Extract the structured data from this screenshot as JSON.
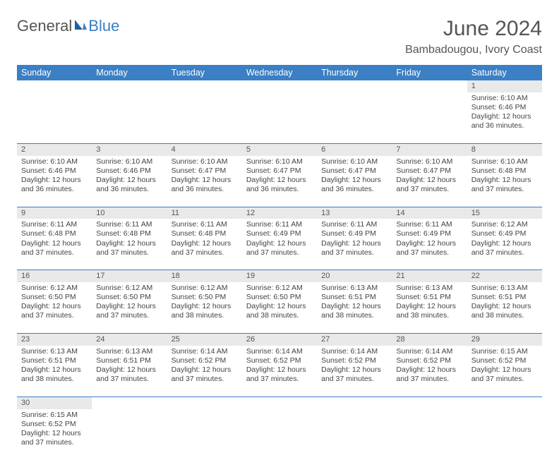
{
  "logo": {
    "text1": "General",
    "text2": "Blue"
  },
  "title": "June 2024",
  "subtitle": "Bambadougou, Ivory Coast",
  "colors": {
    "header_bg": "#3b7fc4",
    "header_fg": "#ffffff",
    "daynum_bg": "#e9e9e9",
    "cell_border": "#3b7fc4",
    "text": "#444444"
  },
  "weekdays": [
    "Sunday",
    "Monday",
    "Tuesday",
    "Wednesday",
    "Thursday",
    "Friday",
    "Saturday"
  ],
  "weeks": [
    [
      null,
      null,
      null,
      null,
      null,
      null,
      {
        "n": "1",
        "sunrise": "6:10 AM",
        "sunset": "6:46 PM",
        "daylight": "12 hours and 36 minutes."
      }
    ],
    [
      {
        "n": "2",
        "sunrise": "6:10 AM",
        "sunset": "6:46 PM",
        "daylight": "12 hours and 36 minutes."
      },
      {
        "n": "3",
        "sunrise": "6:10 AM",
        "sunset": "6:46 PM",
        "daylight": "12 hours and 36 minutes."
      },
      {
        "n": "4",
        "sunrise": "6:10 AM",
        "sunset": "6:47 PM",
        "daylight": "12 hours and 36 minutes."
      },
      {
        "n": "5",
        "sunrise": "6:10 AM",
        "sunset": "6:47 PM",
        "daylight": "12 hours and 36 minutes."
      },
      {
        "n": "6",
        "sunrise": "6:10 AM",
        "sunset": "6:47 PM",
        "daylight": "12 hours and 36 minutes."
      },
      {
        "n": "7",
        "sunrise": "6:10 AM",
        "sunset": "6:47 PM",
        "daylight": "12 hours and 37 minutes."
      },
      {
        "n": "8",
        "sunrise": "6:10 AM",
        "sunset": "6:48 PM",
        "daylight": "12 hours and 37 minutes."
      }
    ],
    [
      {
        "n": "9",
        "sunrise": "6:11 AM",
        "sunset": "6:48 PM",
        "daylight": "12 hours and 37 minutes."
      },
      {
        "n": "10",
        "sunrise": "6:11 AM",
        "sunset": "6:48 PM",
        "daylight": "12 hours and 37 minutes."
      },
      {
        "n": "11",
        "sunrise": "6:11 AM",
        "sunset": "6:48 PM",
        "daylight": "12 hours and 37 minutes."
      },
      {
        "n": "12",
        "sunrise": "6:11 AM",
        "sunset": "6:49 PM",
        "daylight": "12 hours and 37 minutes."
      },
      {
        "n": "13",
        "sunrise": "6:11 AM",
        "sunset": "6:49 PM",
        "daylight": "12 hours and 37 minutes."
      },
      {
        "n": "14",
        "sunrise": "6:11 AM",
        "sunset": "6:49 PM",
        "daylight": "12 hours and 37 minutes."
      },
      {
        "n": "15",
        "sunrise": "6:12 AM",
        "sunset": "6:49 PM",
        "daylight": "12 hours and 37 minutes."
      }
    ],
    [
      {
        "n": "16",
        "sunrise": "6:12 AM",
        "sunset": "6:50 PM",
        "daylight": "12 hours and 37 minutes."
      },
      {
        "n": "17",
        "sunrise": "6:12 AM",
        "sunset": "6:50 PM",
        "daylight": "12 hours and 37 minutes."
      },
      {
        "n": "18",
        "sunrise": "6:12 AM",
        "sunset": "6:50 PM",
        "daylight": "12 hours and 38 minutes."
      },
      {
        "n": "19",
        "sunrise": "6:12 AM",
        "sunset": "6:50 PM",
        "daylight": "12 hours and 38 minutes."
      },
      {
        "n": "20",
        "sunrise": "6:13 AM",
        "sunset": "6:51 PM",
        "daylight": "12 hours and 38 minutes."
      },
      {
        "n": "21",
        "sunrise": "6:13 AM",
        "sunset": "6:51 PM",
        "daylight": "12 hours and 38 minutes."
      },
      {
        "n": "22",
        "sunrise": "6:13 AM",
        "sunset": "6:51 PM",
        "daylight": "12 hours and 38 minutes."
      }
    ],
    [
      {
        "n": "23",
        "sunrise": "6:13 AM",
        "sunset": "6:51 PM",
        "daylight": "12 hours and 38 minutes."
      },
      {
        "n": "24",
        "sunrise": "6:13 AM",
        "sunset": "6:51 PM",
        "daylight": "12 hours and 37 minutes."
      },
      {
        "n": "25",
        "sunrise": "6:14 AM",
        "sunset": "6:52 PM",
        "daylight": "12 hours and 37 minutes."
      },
      {
        "n": "26",
        "sunrise": "6:14 AM",
        "sunset": "6:52 PM",
        "daylight": "12 hours and 37 minutes."
      },
      {
        "n": "27",
        "sunrise": "6:14 AM",
        "sunset": "6:52 PM",
        "daylight": "12 hours and 37 minutes."
      },
      {
        "n": "28",
        "sunrise": "6:14 AM",
        "sunset": "6:52 PM",
        "daylight": "12 hours and 37 minutes."
      },
      {
        "n": "29",
        "sunrise": "6:15 AM",
        "sunset": "6:52 PM",
        "daylight": "12 hours and 37 minutes."
      }
    ],
    [
      {
        "n": "30",
        "sunrise": "6:15 AM",
        "sunset": "6:52 PM",
        "daylight": "12 hours and 37 minutes."
      },
      null,
      null,
      null,
      null,
      null,
      null
    ]
  ],
  "labels": {
    "sunrise": "Sunrise:",
    "sunset": "Sunset:",
    "daylight": "Daylight:"
  }
}
